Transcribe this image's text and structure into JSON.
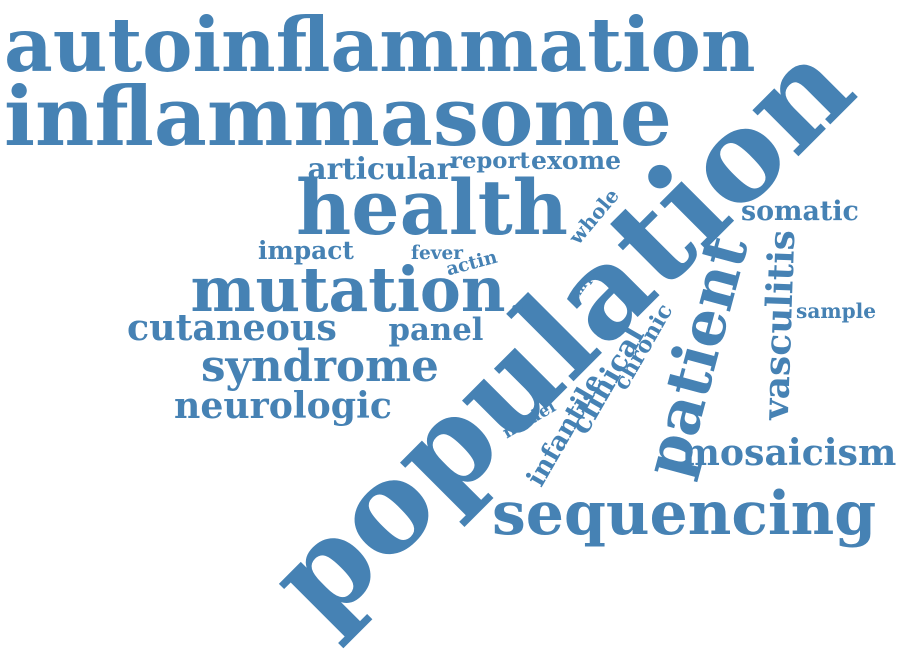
{
  "accent_color": "#4682b4",
  "words": [
    {
      "text": "autoinflammation"
    },
    {
      "text": "inflammasome"
    },
    {
      "text": "population"
    },
    {
      "text": "health"
    },
    {
      "text": "mutation"
    },
    {
      "text": "sequencing"
    },
    {
      "text": "patient"
    },
    {
      "text": "syndrome"
    },
    {
      "text": "cutaneous"
    },
    {
      "text": "neurologic"
    },
    {
      "text": "mosaicism"
    },
    {
      "text": "vasculitis"
    },
    {
      "text": "articular"
    },
    {
      "text": "report"
    },
    {
      "text": "exome"
    },
    {
      "text": "somatic"
    },
    {
      "text": "impact"
    },
    {
      "text": "panel"
    },
    {
      "text": "sample"
    },
    {
      "text": "clinical"
    },
    {
      "text": "infantile"
    },
    {
      "text": "chronic"
    },
    {
      "text": "whole"
    },
    {
      "text": "fever"
    },
    {
      "text": "actin"
    },
    {
      "text": "model"
    },
    {
      "text": "nlrp"
    },
    {
      "text": "cell"
    }
  ]
}
